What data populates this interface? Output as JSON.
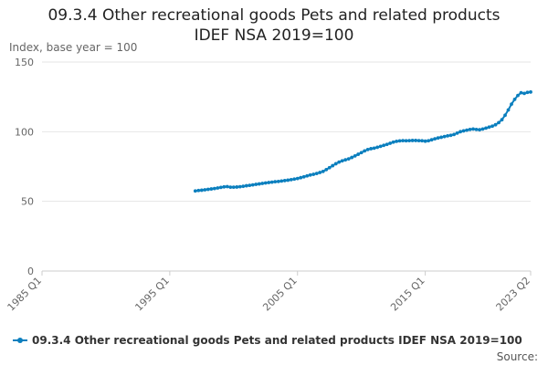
{
  "colors": {
    "series": "#0b7fbe",
    "grid": "#e6e6e6",
    "axis": "#cccccc",
    "tick_text": "#666666"
  },
  "chart_data": {
    "type": "line",
    "title": "09.3.4 Other recreational goods Pets and related products IDEF NSA 2019=100",
    "title_lines": [
      "09.3.4 Other recreational goods Pets and related products",
      "IDEF NSA 2019=100"
    ],
    "ylabel": "Index, base year = 100",
    "xlabel": "",
    "ylim": [
      0,
      150
    ],
    "y_ticks": [
      0,
      50,
      100,
      150
    ],
    "x_range": [
      "1985 Q1",
      "2023 Q2"
    ],
    "x_ticks": [
      "1985 Q1",
      "1995 Q1",
      "2005 Q1",
      "2015 Q1",
      "2023 Q2"
    ],
    "grid": true,
    "legend": "bottom",
    "source_label": "Source:",
    "series": [
      {
        "name": "09.3.4 Other recreational goods Pets and related products IDEF NSA 2019=100",
        "x": [
          "1997 Q1",
          "1997 Q2",
          "1997 Q3",
          "1997 Q4",
          "1998 Q1",
          "1998 Q2",
          "1998 Q3",
          "1998 Q4",
          "1999 Q1",
          "1999 Q2",
          "1999 Q3",
          "1999 Q4",
          "2000 Q1",
          "2000 Q2",
          "2000 Q3",
          "2000 Q4",
          "2001 Q1",
          "2001 Q2",
          "2001 Q3",
          "2001 Q4",
          "2002 Q1",
          "2002 Q2",
          "2002 Q3",
          "2002 Q4",
          "2003 Q1",
          "2003 Q2",
          "2003 Q3",
          "2003 Q4",
          "2004 Q1",
          "2004 Q2",
          "2004 Q3",
          "2004 Q4",
          "2005 Q1",
          "2005 Q2",
          "2005 Q3",
          "2005 Q4",
          "2006 Q1",
          "2006 Q2",
          "2006 Q3",
          "2006 Q4",
          "2007 Q1",
          "2007 Q2",
          "2007 Q3",
          "2007 Q4",
          "2008 Q1",
          "2008 Q2",
          "2008 Q3",
          "2008 Q4",
          "2009 Q1",
          "2009 Q2",
          "2009 Q3",
          "2009 Q4",
          "2010 Q1",
          "2010 Q2",
          "2010 Q3",
          "2010 Q4",
          "2011 Q1",
          "2011 Q2",
          "2011 Q3",
          "2011 Q4",
          "2012 Q1",
          "2012 Q2",
          "2012 Q3",
          "2012 Q4",
          "2013 Q1",
          "2013 Q2",
          "2013 Q3",
          "2013 Q4",
          "2014 Q1",
          "2014 Q2",
          "2014 Q3",
          "2014 Q4",
          "2015 Q1",
          "2015 Q2",
          "2015 Q3",
          "2015 Q4",
          "2016 Q1",
          "2016 Q2",
          "2016 Q3",
          "2016 Q4",
          "2017 Q1",
          "2017 Q2",
          "2017 Q3",
          "2017 Q4",
          "2018 Q1",
          "2018 Q2",
          "2018 Q3",
          "2018 Q4",
          "2019 Q1",
          "2019 Q2",
          "2019 Q3",
          "2019 Q4",
          "2020 Q1",
          "2020 Q2",
          "2020 Q3",
          "2020 Q4",
          "2021 Q1",
          "2021 Q2",
          "2021 Q3",
          "2021 Q4",
          "2022 Q1",
          "2022 Q2",
          "2022 Q3",
          "2022 Q4",
          "2023 Q1",
          "2023 Q2"
        ],
        "values": [
          57.5,
          57.8,
          58.0,
          58.3,
          58.6,
          58.9,
          59.2,
          59.6,
          60.0,
          60.4,
          60.6,
          60.2,
          60.2,
          60.3,
          60.5,
          60.8,
          61.2,
          61.5,
          61.8,
          62.2,
          62.5,
          62.9,
          63.2,
          63.5,
          63.8,
          64.1,
          64.3,
          64.6,
          64.9,
          65.2,
          65.6,
          66.0,
          66.4,
          67.0,
          67.6,
          68.3,
          68.9,
          69.4,
          70.0,
          70.7,
          71.5,
          72.8,
          74.2,
          75.6,
          77.0,
          78.2,
          79.1,
          79.8,
          80.5,
          81.5,
          82.6,
          83.8,
          85.0,
          86.2,
          87.2,
          87.8,
          88.2,
          88.8,
          89.5,
          90.2,
          90.9,
          91.7,
          92.5,
          93.1,
          93.4,
          93.6,
          93.5,
          93.6,
          93.7,
          93.7,
          93.6,
          93.5,
          93.2,
          93.5,
          94.2,
          94.9,
          95.5,
          96.0,
          96.5,
          97.0,
          97.4,
          98.0,
          99.0,
          100.0,
          100.6,
          101.1,
          101.6,
          101.9,
          101.6,
          101.4,
          101.9,
          102.6,
          103.3,
          104.0,
          105.0,
          106.5,
          108.6,
          111.8,
          115.6,
          119.8,
          123.2,
          126.0,
          128.0,
          127.5,
          128.2,
          128.5
        ]
      }
    ]
  }
}
